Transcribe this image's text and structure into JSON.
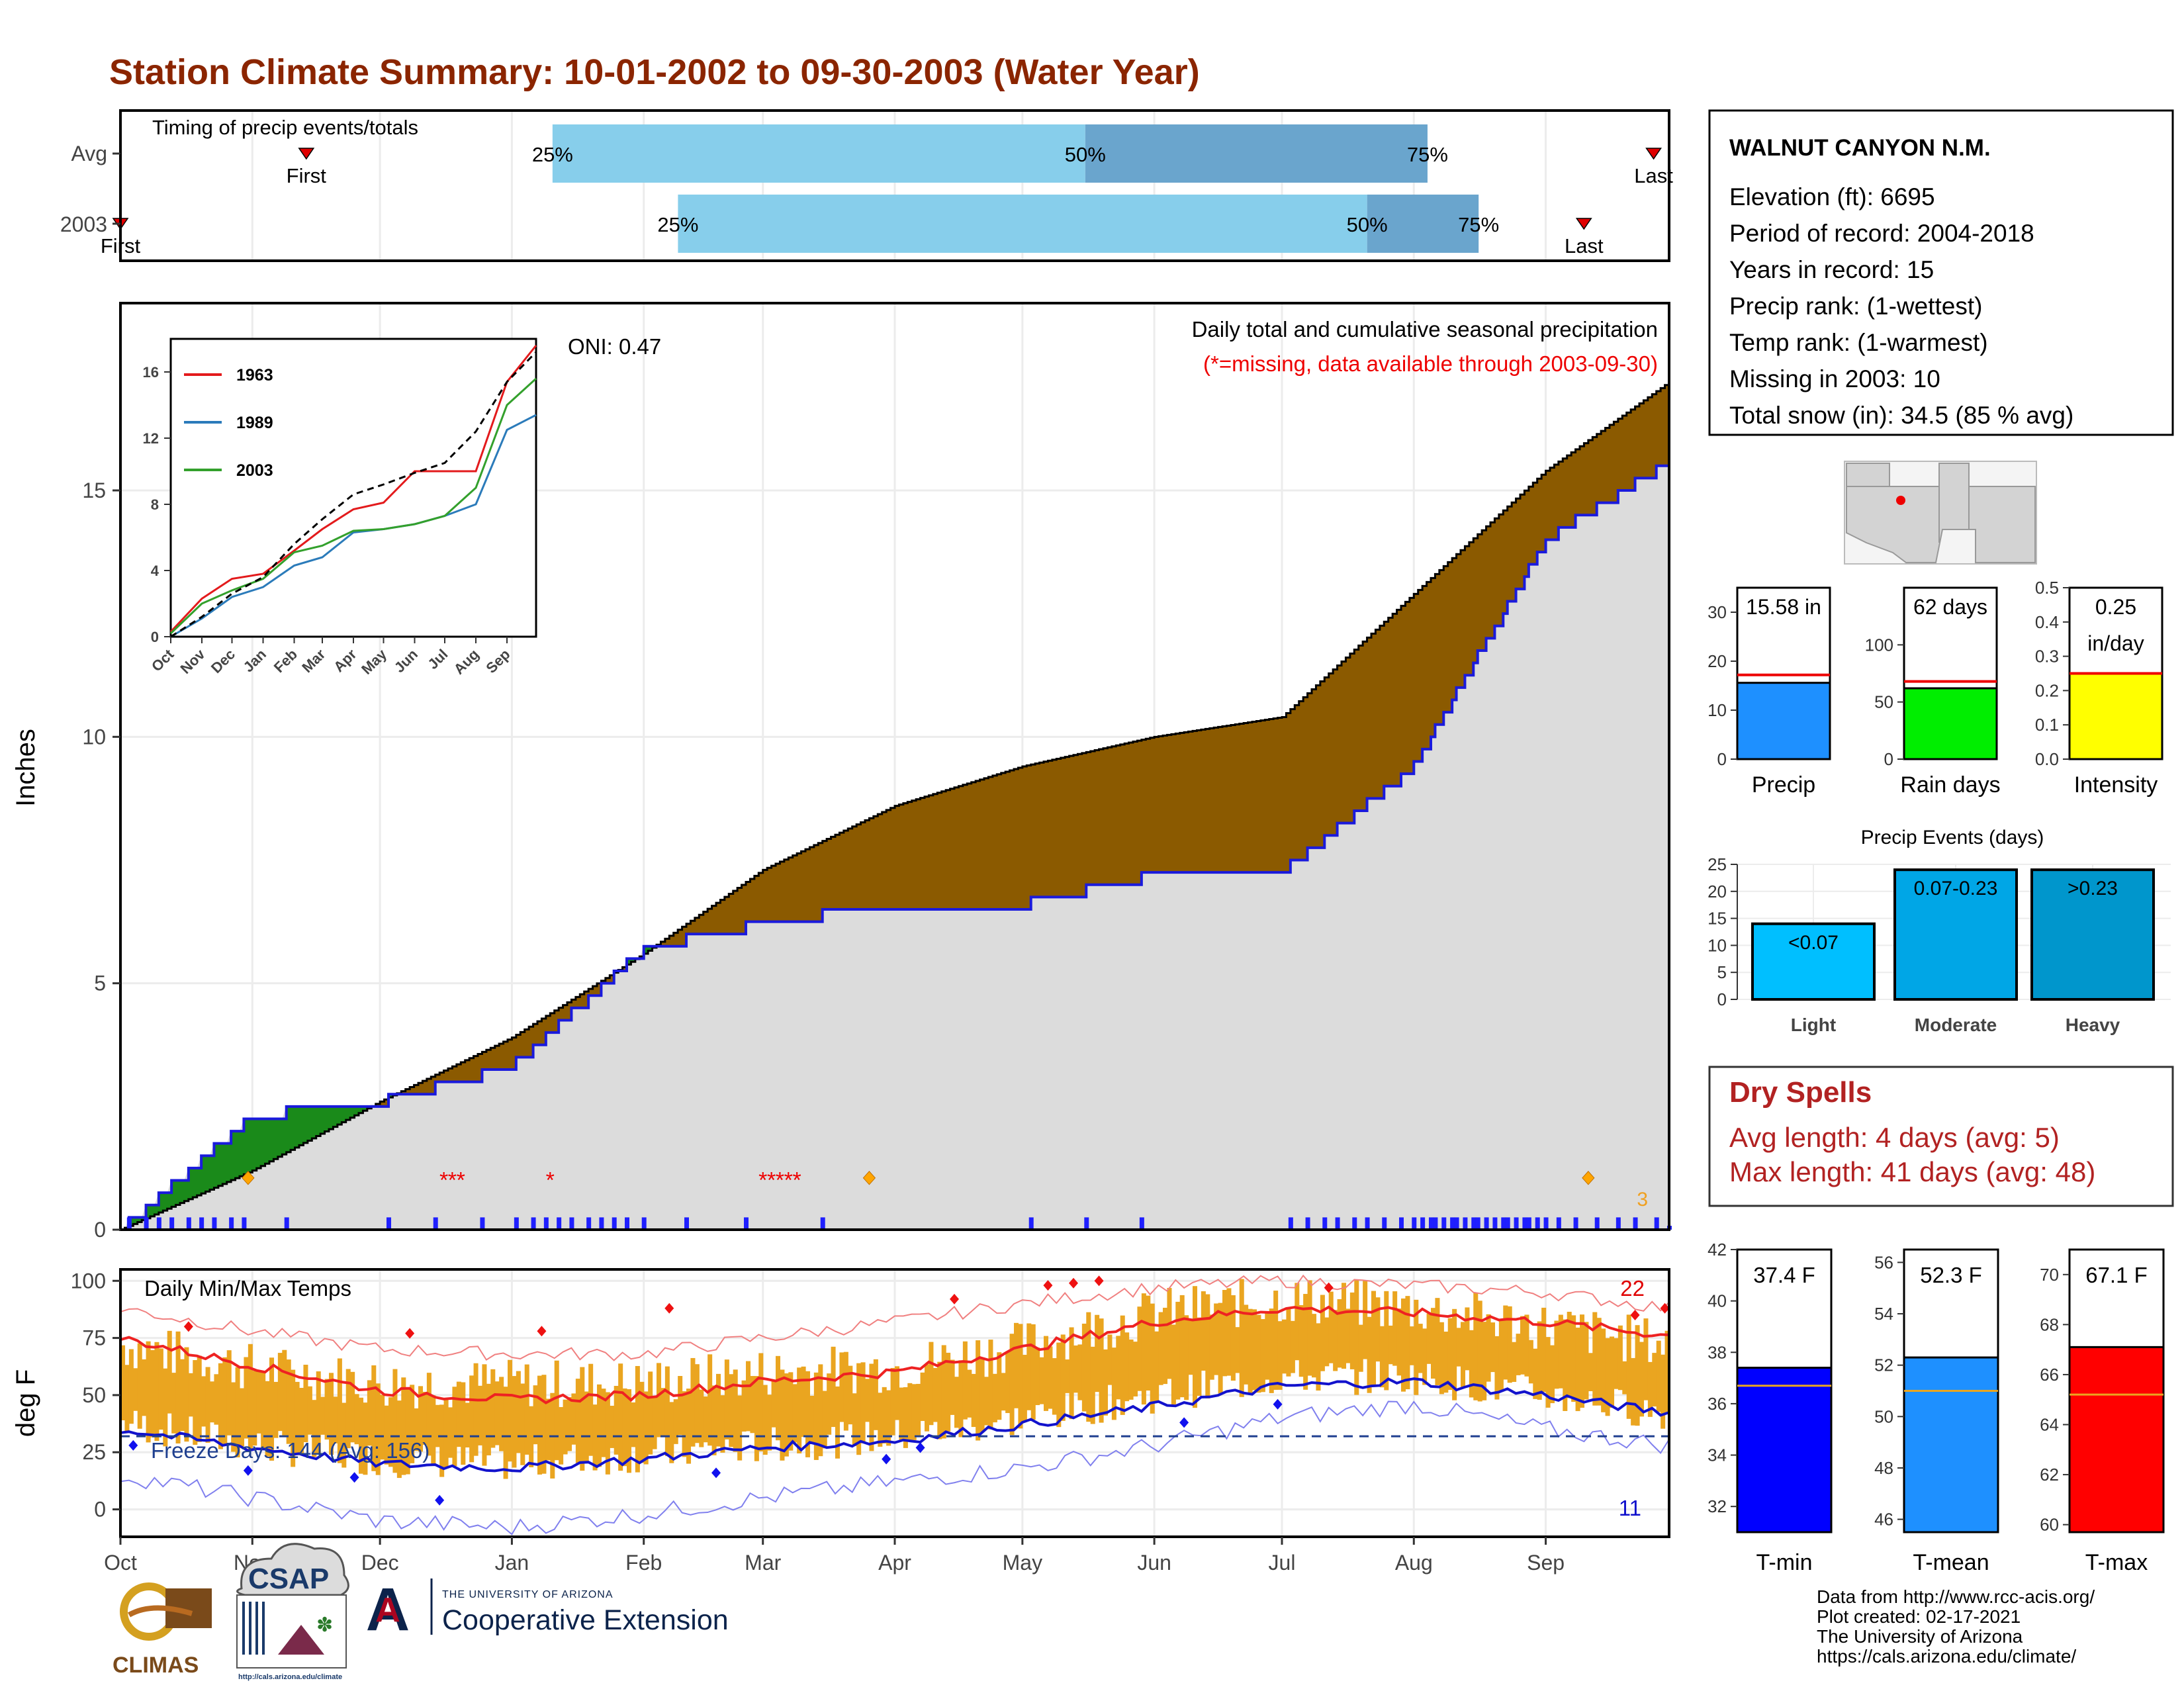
{
  "header": {
    "title": "Station Climate Summary: 10-01-2002 to 09-30-2003 (Water Year)"
  },
  "colors": {
    "title": "#8b2500",
    "avg_cumulative": "#8b5a00",
    "above_avg": "#1a8a1a",
    "obs_line": "#1a1adc",
    "daily_bar": "#1f1fff",
    "gray_fill": "#dcdcdc",
    "temp_bar": "#eaa520",
    "tmax_line": "#ee2222",
    "tmin_line": "#1212cc",
    "light": "#00bfff",
    "moderate": "#00a6e6",
    "heavy": "#0096cc",
    "tmin_bar": "#0000ff",
    "tmean_bar": "#1e90ff",
    "tmax_bar": "#ff0000",
    "precip_bar": "#1e90ff",
    "rain_bar": "#00ee00",
    "intensity_bar": "#ffff00"
  },
  "timing": {
    "title": "Timing of precip events/totals",
    "rows": [
      {
        "label": "Avg",
        "first_label": "First",
        "last_label": "Last",
        "first": 0.12,
        "last": 0.99,
        "p25": 0.279,
        "p50": 0.623,
        "p75": 0.844,
        "p25_label": "25%",
        "p50_label": "50%",
        "p75_label": "75%"
      },
      {
        "label": "2003",
        "first_label": "First",
        "last_label": "Last",
        "first": 0.0,
        "last": 0.945,
        "p25": 0.36,
        "p50": 0.805,
        "p75": 0.877,
        "p25_label": "25%",
        "p50_label": "50%",
        "p75_label": "75%"
      }
    ]
  },
  "precip_panel": {
    "title": "Daily total and cumulative seasonal precipitation",
    "subtitle": "(*=missing, data available through 2003-09-30)",
    "oni": "ONI: 0.47",
    "ylabel": "Inches",
    "yticks": [
      "0",
      "5",
      "10",
      "15"
    ],
    "max_daily_count": "3"
  },
  "inset": {
    "yticks": [
      "0",
      "4",
      "8",
      "12",
      "16"
    ],
    "xticks": [
      "Oct",
      "Nov",
      "Dec",
      "Jan",
      "Feb",
      "Mar",
      "Apr",
      "May",
      "Jun",
      "Jul",
      "Aug",
      "Sep"
    ],
    "legend": [
      "1963",
      "1989",
      "2003"
    ]
  },
  "temp_panel": {
    "title": "Daily Min/Max Temps",
    "ylabel": "deg F",
    "yticks": [
      "0",
      "25",
      "50",
      "75",
      "100"
    ],
    "freeze": "Freeze Days: 144 (Avg: 156)",
    "record_high_count": "22",
    "record_low_count": "11",
    "xticks": [
      "Oct",
      "Nov",
      "Dec",
      "Jan",
      "Feb",
      "Mar",
      "Apr",
      "May",
      "Jun",
      "Jul",
      "Aug",
      "Sep"
    ]
  },
  "station": {
    "name": "WALNUT CANYON N.M.",
    "lines": [
      "Elevation (ft): 6695",
      "Period of record: 2004-2018",
      "Years in record: 15",
      "Precip rank:  (1-wettest)",
      "Temp rank:  (1-warmest)",
      "Missing in 2003: 10",
      "Total snow (in): 34.5 (85 % avg)"
    ]
  },
  "summary_bars": {
    "precip": {
      "label": "Precip",
      "value_label": "15.58 in",
      "value": 15.58,
      "avg": 17.2,
      "yticks": [
        "0",
        "10",
        "20",
        "30"
      ],
      "ymax": 35
    },
    "rain_days": {
      "label": "Rain days",
      "value_label": "62 days",
      "value": 62,
      "avg": 68,
      "yticks": [
        "0",
        "50",
        "100"
      ],
      "ymax": 150
    },
    "intensity": {
      "label": "Intensity",
      "value_label": "0.25",
      "value_label2": "in/day",
      "value": 0.25,
      "avg": 0.25,
      "yticks": [
        "0.0",
        "0.1",
        "0.2",
        "0.3",
        "0.4",
        "0.5"
      ],
      "ymax": 0.5
    }
  },
  "events": {
    "title": "Precip Events (days)",
    "yticks": [
      "0",
      "5",
      "10",
      "15",
      "20",
      "25"
    ],
    "bars": [
      {
        "label": "Light",
        "range": "<0.07",
        "value": 14
      },
      {
        "label": "Moderate",
        "range": "0.07-0.23",
        "value": 24
      },
      {
        "label": "Heavy",
        "range": ">0.23",
        "value": 24
      }
    ]
  },
  "dry_spells": {
    "title": "Dry Spells",
    "avg": "Avg length: 4 days (avg: 5)",
    "max": "Max length: 41 days (avg: 48)"
  },
  "temp_bars": {
    "tmin": {
      "label": "T-min",
      "value_label": "37.4 F",
      "value": 37.4,
      "avg": 36.7,
      "ymin": 31,
      "ymax": 42,
      "yticks": [
        "32",
        "34",
        "36",
        "38",
        "40",
        "42"
      ]
    },
    "tmean": {
      "label": "T-mean",
      "value_label": "52.3 F",
      "value": 52.3,
      "avg": 51.0,
      "ymin": 45.5,
      "ymax": 56.5,
      "yticks": [
        "46",
        "48",
        "50",
        "52",
        "54",
        "56"
      ]
    },
    "tmax": {
      "label": "T-max",
      "value_label": "67.1 F",
      "value": 67.1,
      "avg": 65.2,
      "ymin": 59.7,
      "ymax": 71,
      "yticks": [
        "60",
        "62",
        "64",
        "66",
        "68",
        "70"
      ]
    }
  },
  "footer": {
    "lines": [
      "Data from http://www.rcc-acis.org/",
      "Plot created: 02-17-2021",
      "The University of Arizona",
      "https://cals.arizona.edu/climate/"
    ],
    "climas": "CLIMAS",
    "csap": "CSAP",
    "csap_url": "http://cals.arizona.edu/climate",
    "ua_small": "THE UNIVERSITY OF ARIZONA",
    "ua_big": "Cooperative Extension"
  },
  "chart_data": [
    {
      "type": "area",
      "title": "Daily total and cumulative seasonal precipitation",
      "ylabel": "Inches",
      "ylim": [
        0,
        18.8
      ],
      "x": [
        "Oct",
        "Nov",
        "Dec",
        "Jan",
        "Feb",
        "Mar",
        "Apr",
        "May",
        "Jun",
        "Jul",
        "Aug",
        "Sep",
        "Sep-30"
      ],
      "series": [
        {
          "name": "avg cumulative",
          "values": [
            0.0,
            1.2,
            2.6,
            3.9,
            5.6,
            7.3,
            8.6,
            9.4,
            10.0,
            10.4,
            12.9,
            15.4,
            17.2
          ]
        },
        {
          "name": "2003 cumulative",
          "values": [
            0.0,
            2.3,
            2.6,
            3.3,
            5.7,
            6.2,
            6.6,
            6.6,
            7.2,
            7.25,
            9.4,
            14.0,
            15.58
          ]
        }
      ]
    },
    {
      "type": "line",
      "title": "Daily Min/Max Temps",
      "ylabel": "deg F",
      "ylim": [
        -12,
        105
      ],
      "x": [
        "Oct",
        "Nov",
        "Dec",
        "Jan",
        "Feb",
        "Mar",
        "Apr",
        "May",
        "Jun",
        "Jul",
        "Aug",
        "Sep",
        "Sep-30"
      ],
      "series": [
        {
          "name": "avg max",
          "values": [
            75,
            63,
            52,
            48,
            50,
            56,
            60,
            70,
            82,
            88,
            86,
            82,
            76
          ]
        },
        {
          "name": "avg min",
          "values": [
            35,
            27,
            20,
            18,
            22,
            27,
            30,
            37,
            45,
            54,
            56,
            50,
            42
          ]
        },
        {
          "name": "record max",
          "values": [
            88,
            78,
            70,
            68,
            68,
            75,
            82,
            90,
            97,
            100,
            98,
            95,
            88
          ]
        },
        {
          "name": "record min",
          "values": [
            15,
            5,
            -5,
            -8,
            -2,
            5,
            12,
            18,
            28,
            40,
            46,
            35,
            28
          ]
        },
        {
          "name": "observed max",
          "values": [
            72,
            62,
            55,
            55,
            55,
            60,
            62,
            72,
            86,
            92,
            88,
            80,
            72
          ]
        },
        {
          "name": "observed min",
          "values": [
            38,
            28,
            22,
            20,
            24,
            28,
            32,
            40,
            50,
            58,
            58,
            50,
            42
          ]
        }
      ]
    },
    {
      "type": "line",
      "title": "inset cumulative",
      "x": [
        "Oct",
        "Nov",
        "Dec",
        "Jan",
        "Feb",
        "Mar",
        "Apr",
        "May",
        "Jun",
        "Jul",
        "Aug",
        "Sep",
        "Sep-30"
      ],
      "series": [
        {
          "name": "1963",
          "values": [
            0.3,
            2.3,
            3.5,
            3.8,
            5.2,
            6.5,
            7.7,
            8.1,
            10.0,
            10.0,
            10.0,
            15.4,
            17.6
          ]
        },
        {
          "name": "1989",
          "values": [
            0.0,
            1.1,
            2.4,
            3.0,
            4.3,
            4.8,
            6.3,
            6.5,
            6.8,
            7.3,
            8.0,
            12.5,
            13.4
          ]
        },
        {
          "name": "2003",
          "values": [
            0.2,
            2.0,
            2.8,
            3.5,
            5.1,
            5.5,
            6.4,
            6.5,
            6.8,
            7.3,
            9.0,
            14.0,
            15.6
          ]
        },
        {
          "name": "average",
          "values": [
            0.0,
            1.2,
            2.6,
            3.6,
            5.6,
            7.1,
            8.6,
            9.2,
            9.9,
            10.5,
            12.4,
            15.4,
            17.2
          ]
        }
      ]
    }
  ]
}
